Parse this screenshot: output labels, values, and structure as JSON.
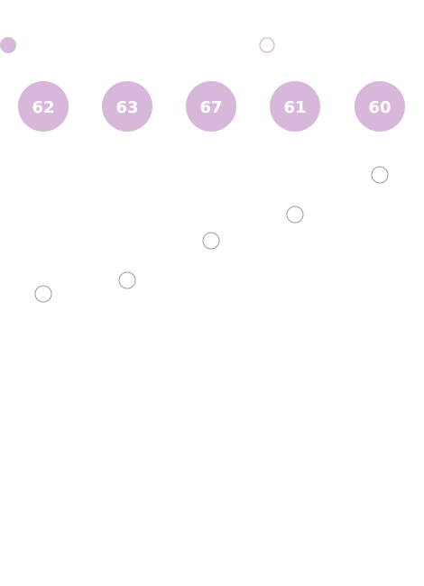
{
  "chart_data": {
    "type": "scatter",
    "title": "",
    "xlabel": "",
    "ylabel": "",
    "grid": false,
    "legend": {
      "position": "top-left",
      "entries": [
        {
          "marker": "filled-circle",
          "label": ""
        },
        {
          "marker": "hollow-circle",
          "label": ""
        }
      ]
    },
    "colors": {
      "bubble_fill": "#d7b8da",
      "bubble_text": "#ffffff",
      "hollow_stroke": "#9a9a9a",
      "hollow_fill": "#ffffff",
      "legend_hollow_stroke": "#c6a4cc",
      "legend_filled": "#d7b8da"
    },
    "series": [
      {
        "name": "",
        "kind": "bubble-labels",
        "values": [
          62,
          63,
          67,
          61,
          60
        ]
      },
      {
        "name": "",
        "kind": "hollow-points",
        "values": [
          2,
          19,
          33,
          39,
          53
        ]
      }
    ]
  }
}
